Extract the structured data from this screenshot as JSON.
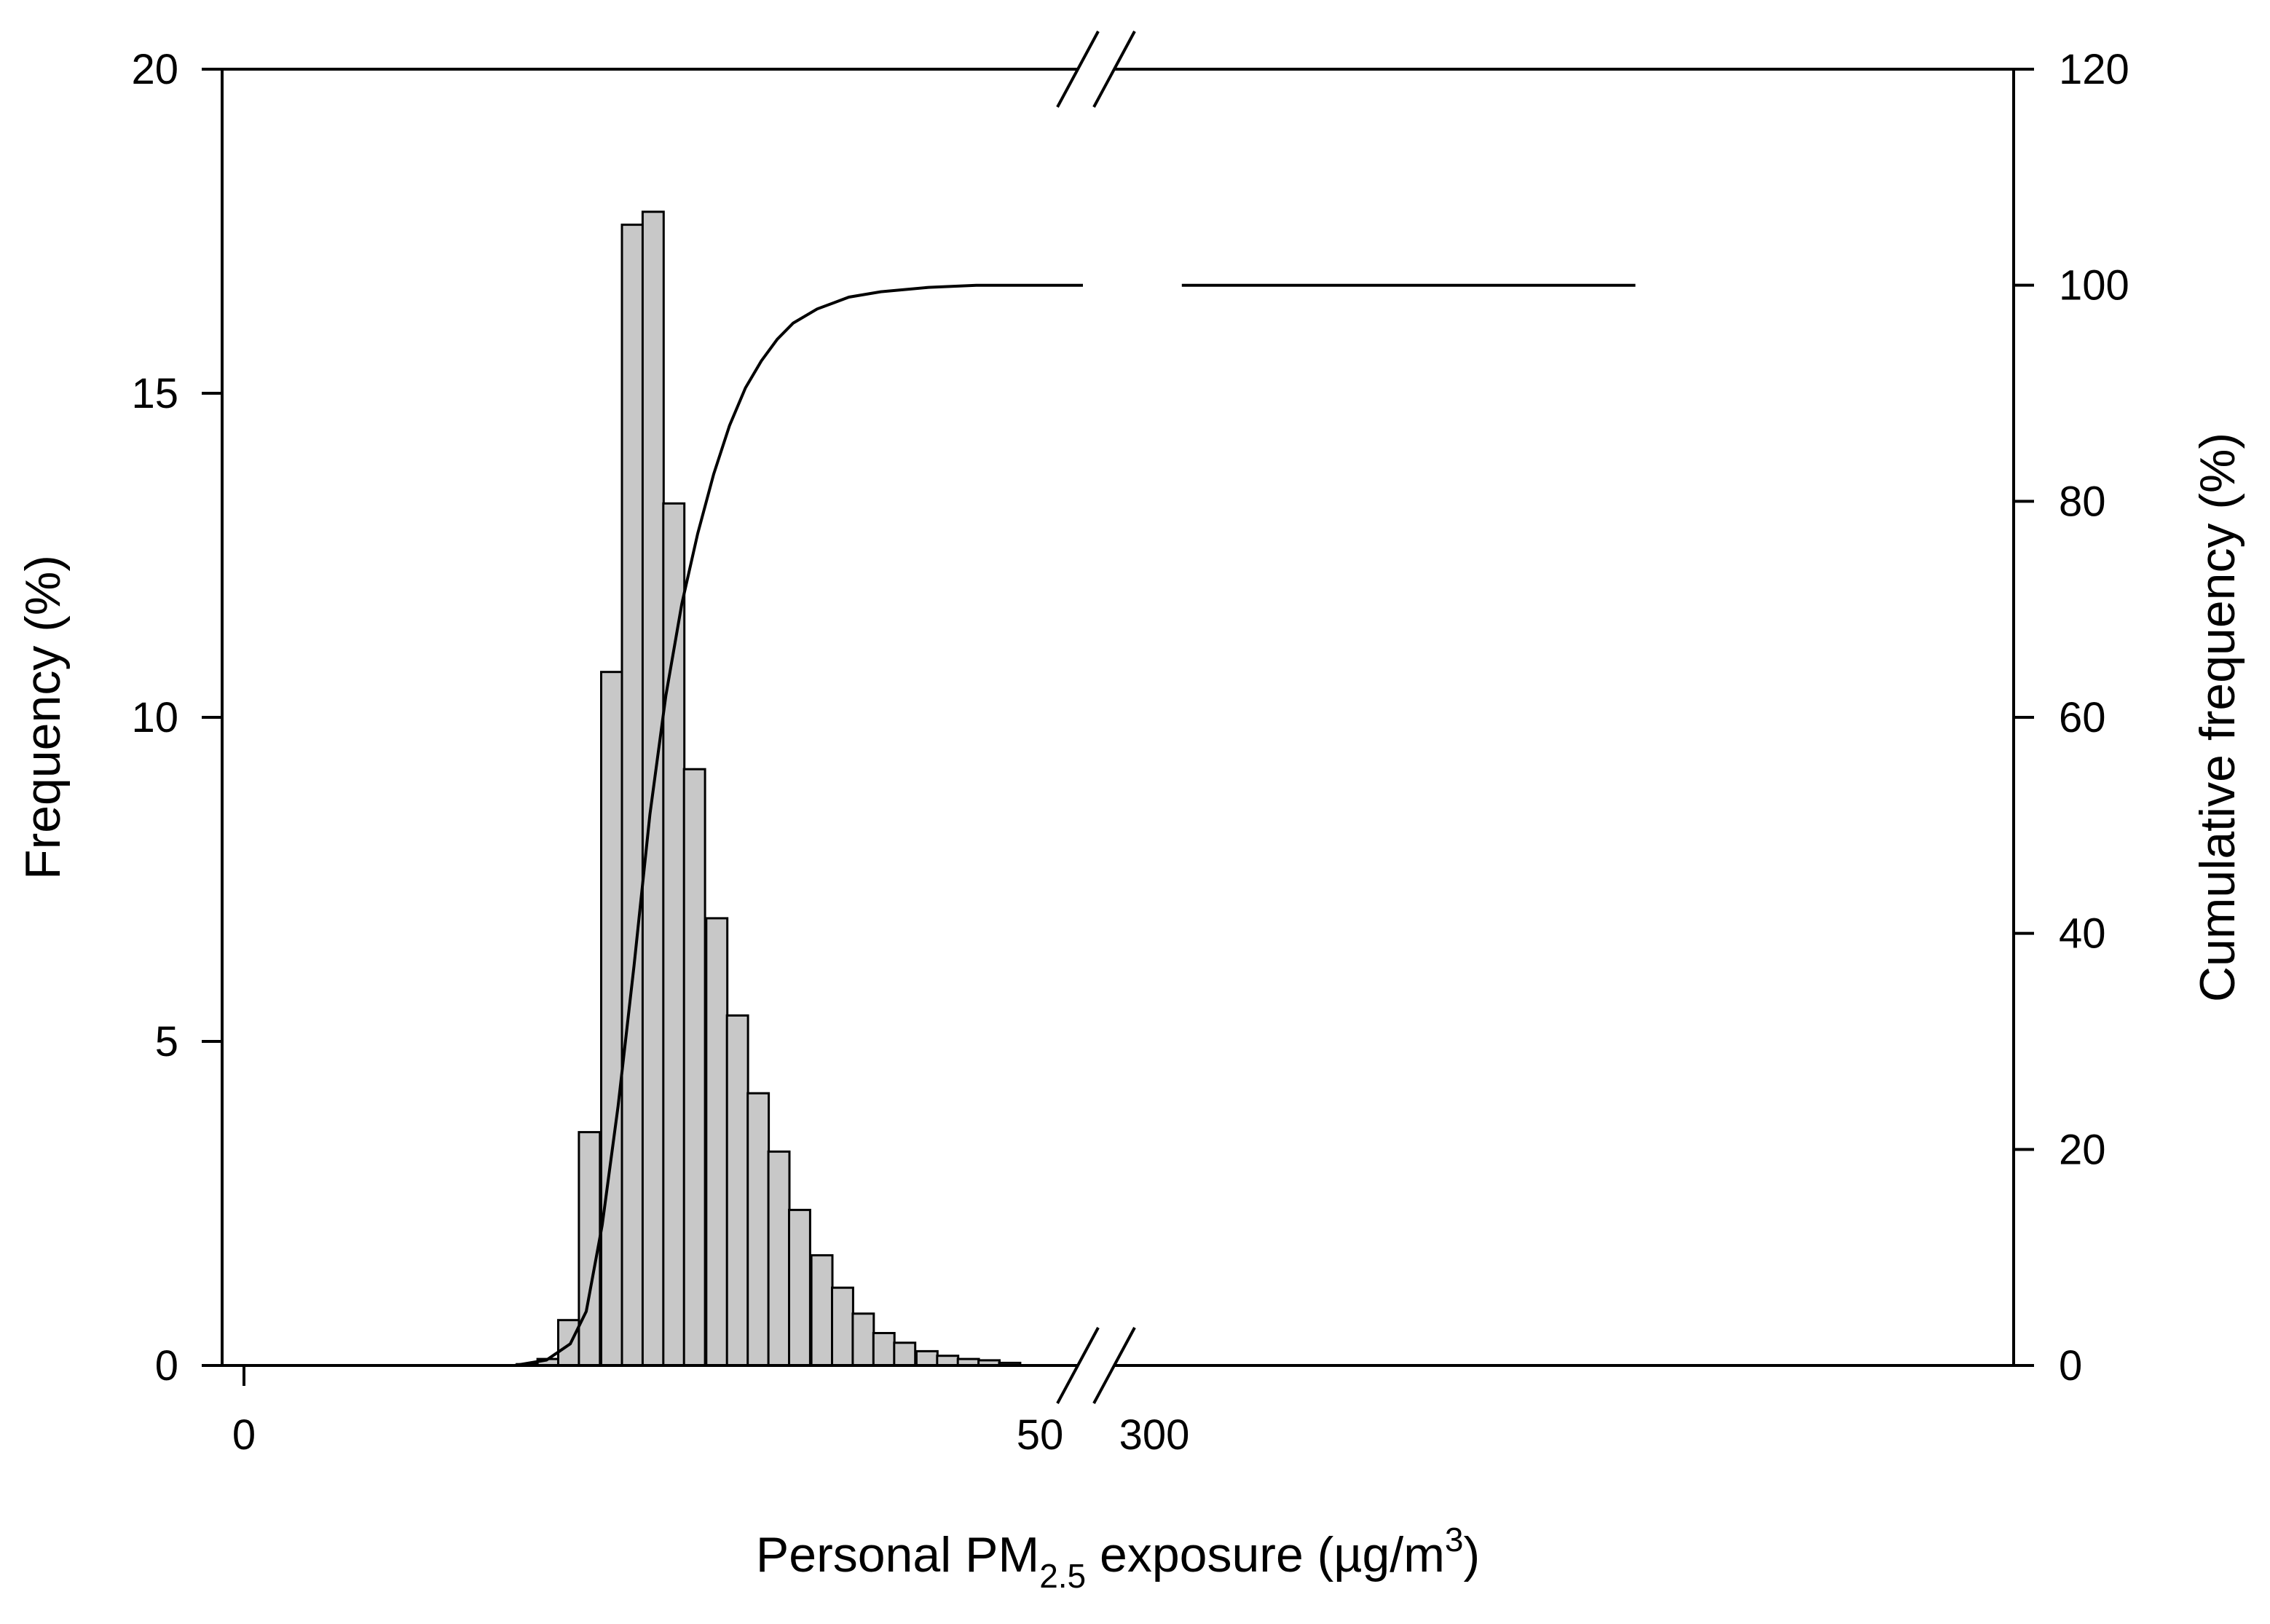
{
  "chart_data": {
    "type": "bar",
    "title": "",
    "xlabel": "Personal PM",
    "xlabel_sub": "2.5",
    "xlabel_tail": " exposure (µg/m",
    "xlabel_sup": "3",
    "xlabel_close": ")",
    "ylabel": "Frequency (%)",
    "y2label": "Cumulative frequency (%)",
    "grid": false,
    "legend": "none",
    "xlim": [
      0,
      50
    ],
    "x_break_after": 50,
    "x_break_resume": 300,
    "x_break_range": [
      300,
      340
    ],
    "x_ticks": [
      0,
      50,
      300
    ],
    "x_tick_labels": [
      "0",
      "50",
      "300"
    ],
    "ylim": [
      0,
      20
    ],
    "y_ticks": [
      0,
      5,
      10,
      15,
      20
    ],
    "y_tick_labels": [
      "0",
      "5",
      "10",
      "15",
      "20"
    ],
    "y2lim": [
      0,
      120
    ],
    "y2_ticks": [
      0,
      20,
      40,
      60,
      80,
      100,
      120
    ],
    "y2_tick_labels": [
      "0",
      "20",
      "40",
      "60",
      "80",
      "100",
      "120"
    ],
    "bin_width": 1.32,
    "bar_fill": "#c8c8c8",
    "bar_stroke": "#000000",
    "bars": [
      {
        "x": 17.8,
        "value": 0.02
      },
      {
        "x": 19.1,
        "value": 0.1
      },
      {
        "x": 20.4,
        "value": 0.7
      },
      {
        "x": 21.7,
        "value": 3.6
      },
      {
        "x": 23.1,
        "value": 10.7
      },
      {
        "x": 24.4,
        "value": 17.6
      },
      {
        "x": 25.7,
        "value": 17.8
      },
      {
        "x": 27.0,
        "value": 13.3
      },
      {
        "x": 28.3,
        "value": 9.2
      },
      {
        "x": 29.7,
        "value": 6.9
      },
      {
        "x": 31.0,
        "value": 5.4
      },
      {
        "x": 32.3,
        "value": 4.2
      },
      {
        "x": 33.6,
        "value": 3.3
      },
      {
        "x": 34.9,
        "value": 2.4
      },
      {
        "x": 36.3,
        "value": 1.7
      },
      {
        "x": 37.6,
        "value": 1.2
      },
      {
        "x": 38.9,
        "value": 0.8
      },
      {
        "x": 40.2,
        "value": 0.5
      },
      {
        "x": 41.5,
        "value": 0.35
      },
      {
        "x": 42.9,
        "value": 0.22
      },
      {
        "x": 44.2,
        "value": 0.15
      },
      {
        "x": 45.5,
        "value": 0.1
      },
      {
        "x": 46.8,
        "value": 0.08
      },
      {
        "x": 48.1,
        "value": 0.04
      }
    ],
    "cumulative": [
      {
        "x": 17.0,
        "y": 0.0
      },
      {
        "x": 19.0,
        "y": 0.5
      },
      {
        "x": 20.5,
        "y": 2.0
      },
      {
        "x": 21.5,
        "y": 5.0
      },
      {
        "x": 22.5,
        "y": 13.0
      },
      {
        "x": 23.5,
        "y": 24.0
      },
      {
        "x": 24.5,
        "y": 37.0
      },
      {
        "x": 25.5,
        "y": 51.0
      },
      {
        "x": 26.5,
        "y": 62.0
      },
      {
        "x": 27.5,
        "y": 70.5
      },
      {
        "x": 28.5,
        "y": 77.0
      },
      {
        "x": 29.5,
        "y": 82.5
      },
      {
        "x": 30.5,
        "y": 87.0
      },
      {
        "x": 31.5,
        "y": 90.5
      },
      {
        "x": 32.5,
        "y": 93.0
      },
      {
        "x": 33.5,
        "y": 95.0
      },
      {
        "x": 34.5,
        "y": 96.5
      },
      {
        "x": 36.0,
        "y": 97.8
      },
      {
        "x": 38.0,
        "y": 98.9
      },
      {
        "x": 40.0,
        "y": 99.4
      },
      {
        "x": 43.0,
        "y": 99.8
      },
      {
        "x": 46.0,
        "y": 100.0
      },
      {
        "x": 52.7,
        "y": 100.0
      }
    ],
    "cumulative_after_break": [
      {
        "x": 302,
        "y": 100.0
      },
      {
        "x": 335,
        "y": 100.0
      }
    ]
  }
}
